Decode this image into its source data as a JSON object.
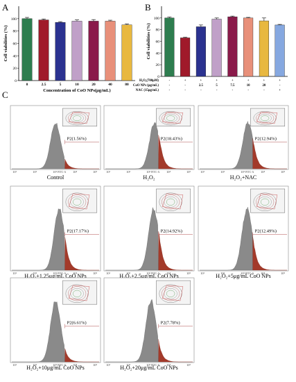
{
  "panels": {
    "A": {
      "letter": "A"
    },
    "B": {
      "letter": "B"
    },
    "C": {
      "letter": "C"
    }
  },
  "chart_data": [
    {
      "type": "bar",
      "id": "A",
      "ylabel": "Cell viabilities (%)",
      "xlabel": "Concentration of CoO NPs(μg/mL)",
      "categories": [
        "0",
        "2.5",
        "5",
        "10",
        "20",
        "40",
        "80"
      ],
      "values": [
        100,
        98,
        94,
        96,
        96,
        96,
        90
      ],
      "errors": [
        2,
        1.5,
        1.2,
        2,
        2.5,
        1.5,
        1.5
      ],
      "colors": [
        "#2e7d4f",
        "#a01a2a",
        "#2b3290",
        "#c0a0c8",
        "#8a1a4a",
        "#e8907a",
        "#e8b840"
      ],
      "ylim": [
        0,
        120
      ],
      "yticks": [
        "0",
        "20",
        "40",
        "60",
        "80",
        "100"
      ]
    },
    {
      "type": "bar",
      "id": "B",
      "ylabel": "Cell viabilities (%)",
      "values": [
        100,
        66,
        85,
        98,
        102,
        100,
        95,
        88
      ],
      "errors": [
        1.5,
        1,
        3,
        2,
        1.2,
        1,
        5,
        1
      ],
      "colors": [
        "#2e7d4f",
        "#a01a2a",
        "#2b3290",
        "#c0a0c8",
        "#8a1a4a",
        "#e8907a",
        "#e8b840",
        "#86a8e0"
      ],
      "ylim": [
        0,
        120
      ],
      "yticks": [
        "0",
        "20",
        "40",
        "60",
        "80",
        "100"
      ],
      "table": [
        {
          "label": "H₂O₂(700μM)",
          "cells": [
            "-",
            "+",
            "+",
            "+",
            "+",
            "+",
            "+",
            "+"
          ]
        },
        {
          "label": "CoO NPs (μg/mL)",
          "cells": [
            "-",
            "-",
            "2.5",
            "5",
            "7.5",
            "10",
            "20",
            "-"
          ]
        },
        {
          "label": "NAC (15μg/mL)",
          "cells": [
            "-",
            "-",
            "-",
            "-",
            "-",
            "-",
            "-",
            "+"
          ]
        }
      ]
    },
    {
      "type": "histogram",
      "id": "C",
      "xaxis_label": "FITC-A",
      "xticks": [
        "10¹",
        "10²",
        "10³",
        "10⁴",
        "10⁵"
      ],
      "panels": [
        {
          "caption": "Control",
          "gate": "P2(1.56%)",
          "peak": 0.5
        },
        {
          "caption": "H₂O₂",
          "gate": "P2(18.43%)",
          "peak": 0.56
        },
        {
          "caption": "H₂O₂+NAC",
          "gate": "P2(12.94%)",
          "peak": 0.55
        },
        {
          "caption": "H₂O₂+1.25μg/mL CoO NPs",
          "gate": "P2(17.17%)",
          "peak": 0.54
        },
        {
          "caption": "H₂O₂+2.5μg/mL CoO NPs",
          "gate": "P2(14.92%)",
          "peak": 0.55
        },
        {
          "caption": "H₂O₂+5μg/mL CoO NPs",
          "gate": "P2(12.49%)",
          "peak": 0.54
        },
        {
          "caption": "H₂O₂+10μg/mL CoO NPs",
          "gate": "P2(6.61%)",
          "peak": 0.5
        },
        {
          "caption": "H₂O₂+20μg/mL CoO NPs",
          "gate": "P2(7.78%)",
          "peak": 0.52
        }
      ]
    }
  ]
}
